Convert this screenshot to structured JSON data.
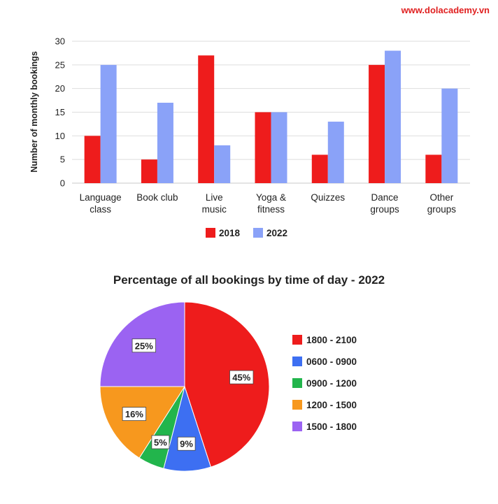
{
  "watermark": "www.dolacademy.vn",
  "chart_data": [
    {
      "type": "bar",
      "title": "",
      "ylabel": "Number of monthly bookings",
      "xlabel": "",
      "ylim": [
        0,
        30
      ],
      "yticks": [
        0,
        5,
        10,
        15,
        20,
        25,
        30
      ],
      "grid": true,
      "legend_position": "bottom",
      "categories": [
        [
          "Language",
          "class"
        ],
        [
          "Book club"
        ],
        [
          "Live",
          "music"
        ],
        [
          "Yoga &",
          "fitness"
        ],
        [
          "Quizzes"
        ],
        [
          "Dance",
          "groups"
        ],
        [
          "Other",
          "groups"
        ]
      ],
      "series": [
        {
          "name": "2018",
          "color": "#ee1c1c",
          "values": [
            10,
            5,
            27,
            15,
            6,
            25,
            6
          ]
        },
        {
          "name": "2022",
          "color": "#8aa2f8",
          "values": [
            25,
            17,
            8,
            15,
            13,
            28,
            20
          ]
        }
      ]
    },
    {
      "type": "pie",
      "title": "Percentage of all bookings by time of day - 2022",
      "legend_position": "right",
      "slices": [
        {
          "label": "1800 - 2100",
          "value": 45,
          "text": "45%",
          "color": "#ee1c1c"
        },
        {
          "label": "0600 - 0900",
          "value": 9,
          "text": "9%",
          "color": "#3d6ff2"
        },
        {
          "label": "0900 - 1200",
          "value": 5,
          "text": "5%",
          "color": "#22b54c"
        },
        {
          "label": "1200 - 1500",
          "value": 16,
          "text": "16%",
          "color": "#f7981e"
        },
        {
          "label": "1500 - 1800",
          "value": 25,
          "text": "25%",
          "color": "#9b63f2"
        }
      ]
    }
  ]
}
